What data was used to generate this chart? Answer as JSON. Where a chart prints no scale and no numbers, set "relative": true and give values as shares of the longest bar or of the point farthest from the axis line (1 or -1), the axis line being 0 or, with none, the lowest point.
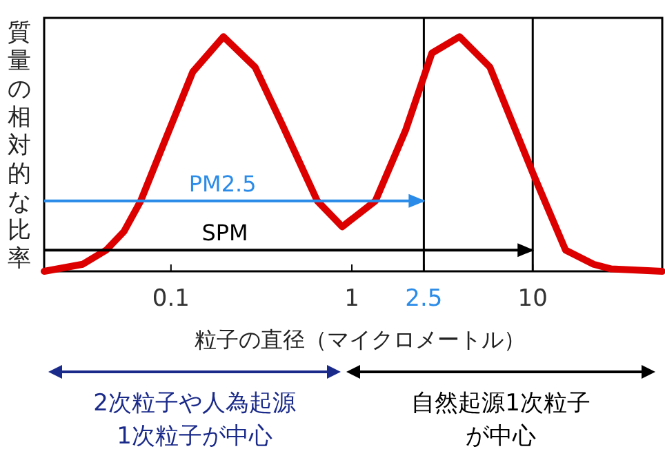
{
  "chart_data": {
    "type": "line",
    "relative": true,
    "log": "x",
    "ylabel": "質量の相対的な比率",
    "xlabel": "粒子の直径（マイクロメートル）",
    "xlim": [
      0.0199,
      52
    ],
    "xticks": [
      0.1,
      1,
      2.5,
      10
    ],
    "tick_labels": "x",
    "grid": false,
    "marker": "none",
    "line_style": "solid",
    "x": [
      0.0199,
      0.0325,
      0.0438,
      0.055,
      0.068,
      0.093,
      0.132,
      0.195,
      0.292,
      0.415,
      0.644,
      0.885,
      1.35,
      1.98,
      2.77,
      3.94,
      5.8,
      10,
      15.2,
      21.7,
      27.2,
      52
    ],
    "series": [
      {
        "color": "#dd0000",
        "values": [
          0,
          0.03,
          0.09,
          0.17,
          0.3,
          0.56,
          0.85,
          1,
          0.87,
          0.62,
          0.3,
          0.19,
          0.3,
          0.6,
          0.93,
          1,
          0.87,
          0.42,
          0.09,
          0.03,
          0.01,
          0
        ]
      },
      {
        "name": "PM2.5",
        "color": "#2a8be8",
        "x": [
          0.0199,
          2.5
        ],
        "values": [
          0.3,
          0.3
        ]
      },
      {
        "name": "SPM",
        "color": "#000000",
        "x": [
          0.0199,
          10
        ],
        "values": [
          0.09,
          0.09
        ]
      }
    ],
    "ref_lines": [
      {
        "axis": "x",
        "value": 2.5,
        "color": "#000000"
      },
      {
        "axis": "x",
        "value": 10,
        "color": "#000000"
      }
    ],
    "annotations": [
      "2次粒子や人為起源1次粒子が中心",
      "自然起源1次粒子が中心"
    ]
  }
}
